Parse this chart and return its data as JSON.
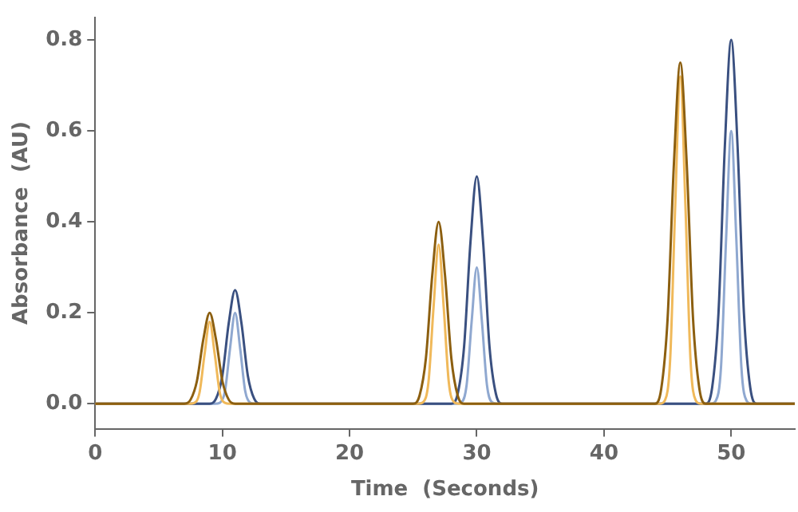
{
  "chart_data": {
    "type": "line",
    "xlabel": "Time  (Seconds)",
    "ylabel": "Absorbance  (AU)",
    "xlim": [
      0,
      55
    ],
    "ylim": [
      -0.055,
      0.85
    ],
    "xticks": [
      0,
      10,
      20,
      30,
      40,
      50
    ],
    "yticks": [
      {
        "value": 0,
        "label": "0.0"
      },
      {
        "value": 0.2,
        "label": "0.2"
      },
      {
        "value": 0.4,
        "label": "0.4"
      },
      {
        "value": 0.6,
        "label": "0.6"
      },
      {
        "value": 0.8,
        "label": "0.8"
      }
    ],
    "grid": false,
    "legend": false,
    "marker": "none",
    "line_style": "solid",
    "series": [
      {
        "color": "#8c5f10",
        "x": [
          0,
          7,
          7.5,
          8,
          8.5,
          9,
          9.5,
          10,
          10.5,
          11,
          25,
          25.5,
          26,
          26.5,
          27,
          27.5,
          28,
          28.5,
          29,
          44,
          44.5,
          45,
          45.5,
          46,
          46.5,
          47,
          47.5,
          48,
          55
        ],
        "values": [
          0,
          0,
          0.009,
          0.05,
          0.141,
          0.2,
          0.141,
          0.05,
          0.009,
          0,
          0,
          0.018,
          0.1,
          0.283,
          0.4,
          0.283,
          0.1,
          0.018,
          0,
          0,
          0.033,
          0.187,
          0.53,
          0.75,
          0.53,
          0.187,
          0.033,
          0,
          0
        ]
      },
      {
        "color": "#f0b95a",
        "x": [
          0,
          7.4,
          7.8,
          8.2,
          8.6,
          9,
          9.4,
          9.8,
          10.2,
          10.6,
          25.4,
          25.8,
          26.2,
          26.6,
          27,
          27.4,
          27.8,
          28.2,
          28.6,
          44.4,
          44.8,
          45.2,
          45.6,
          46,
          46.4,
          46.8,
          47.2,
          47.6,
          55
        ],
        "values": [
          0,
          0,
          0.002,
          0.024,
          0.109,
          0.18,
          0.109,
          0.024,
          0.002,
          0,
          0,
          0.004,
          0.047,
          0.212,
          0.35,
          0.212,
          0.047,
          0.004,
          0,
          0,
          0.008,
          0.097,
          0.437,
          0.72,
          0.437,
          0.097,
          0.008,
          0,
          0
        ]
      },
      {
        "color": "#3a5080",
        "x": [
          0,
          9,
          9.5,
          10,
          10.5,
          11,
          11.5,
          12,
          12.5,
          13,
          28,
          28.5,
          29,
          29.5,
          30,
          30.5,
          31,
          31.5,
          32,
          48,
          48.5,
          49,
          49.5,
          50,
          50.5,
          51,
          51.5,
          52,
          55
        ],
        "values": [
          0,
          0,
          0.011,
          0.062,
          0.177,
          0.25,
          0.177,
          0.062,
          0.011,
          0,
          0,
          0.022,
          0.125,
          0.354,
          0.5,
          0.354,
          0.125,
          0.022,
          0,
          0,
          0.035,
          0.199,
          0.566,
          0.8,
          0.566,
          0.199,
          0.035,
          0,
          0
        ]
      },
      {
        "color": "#8fa8d0",
        "x": [
          0,
          9.4,
          9.8,
          10.2,
          10.6,
          11,
          11.4,
          11.8,
          12.2,
          12.6,
          28.4,
          28.8,
          29.2,
          29.6,
          30,
          30.4,
          30.8,
          31.2,
          31.6,
          48.4,
          48.8,
          49.2,
          49.6,
          50,
          50.4,
          50.8,
          51.2,
          51.6,
          55
        ],
        "values": [
          0,
          0,
          0.002,
          0.027,
          0.121,
          0.2,
          0.121,
          0.027,
          0.002,
          0,
          0,
          0.003,
          0.041,
          0.182,
          0.3,
          0.182,
          0.041,
          0.003,
          0,
          0,
          0.007,
          0.081,
          0.364,
          0.6,
          0.364,
          0.081,
          0.007,
          0,
          0
        ]
      }
    ]
  }
}
